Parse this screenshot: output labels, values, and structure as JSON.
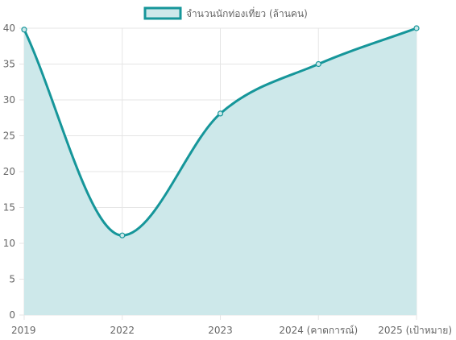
{
  "chart_data": {
    "type": "area",
    "categories": [
      "2019",
      "2022",
      "2023",
      "2024 (คาดการณ์)",
      "2025 (เป้าหมาย)"
    ],
    "series": [
      {
        "name": "จำนวนนักท่องเที่ยว (ล้านคน)",
        "values": [
          39.8,
          11.1,
          28.1,
          35.0,
          40.0
        ]
      }
    ],
    "ylim": [
      0,
      40
    ],
    "yticks": [
      "0",
      "5",
      "10",
      "15",
      "20",
      "25",
      "30",
      "35",
      "40"
    ],
    "grid": true,
    "legend_position": "top",
    "colors": {
      "line": "#16969a",
      "fill": "#cde8ea",
      "grid": "#e5e5e5"
    }
  }
}
